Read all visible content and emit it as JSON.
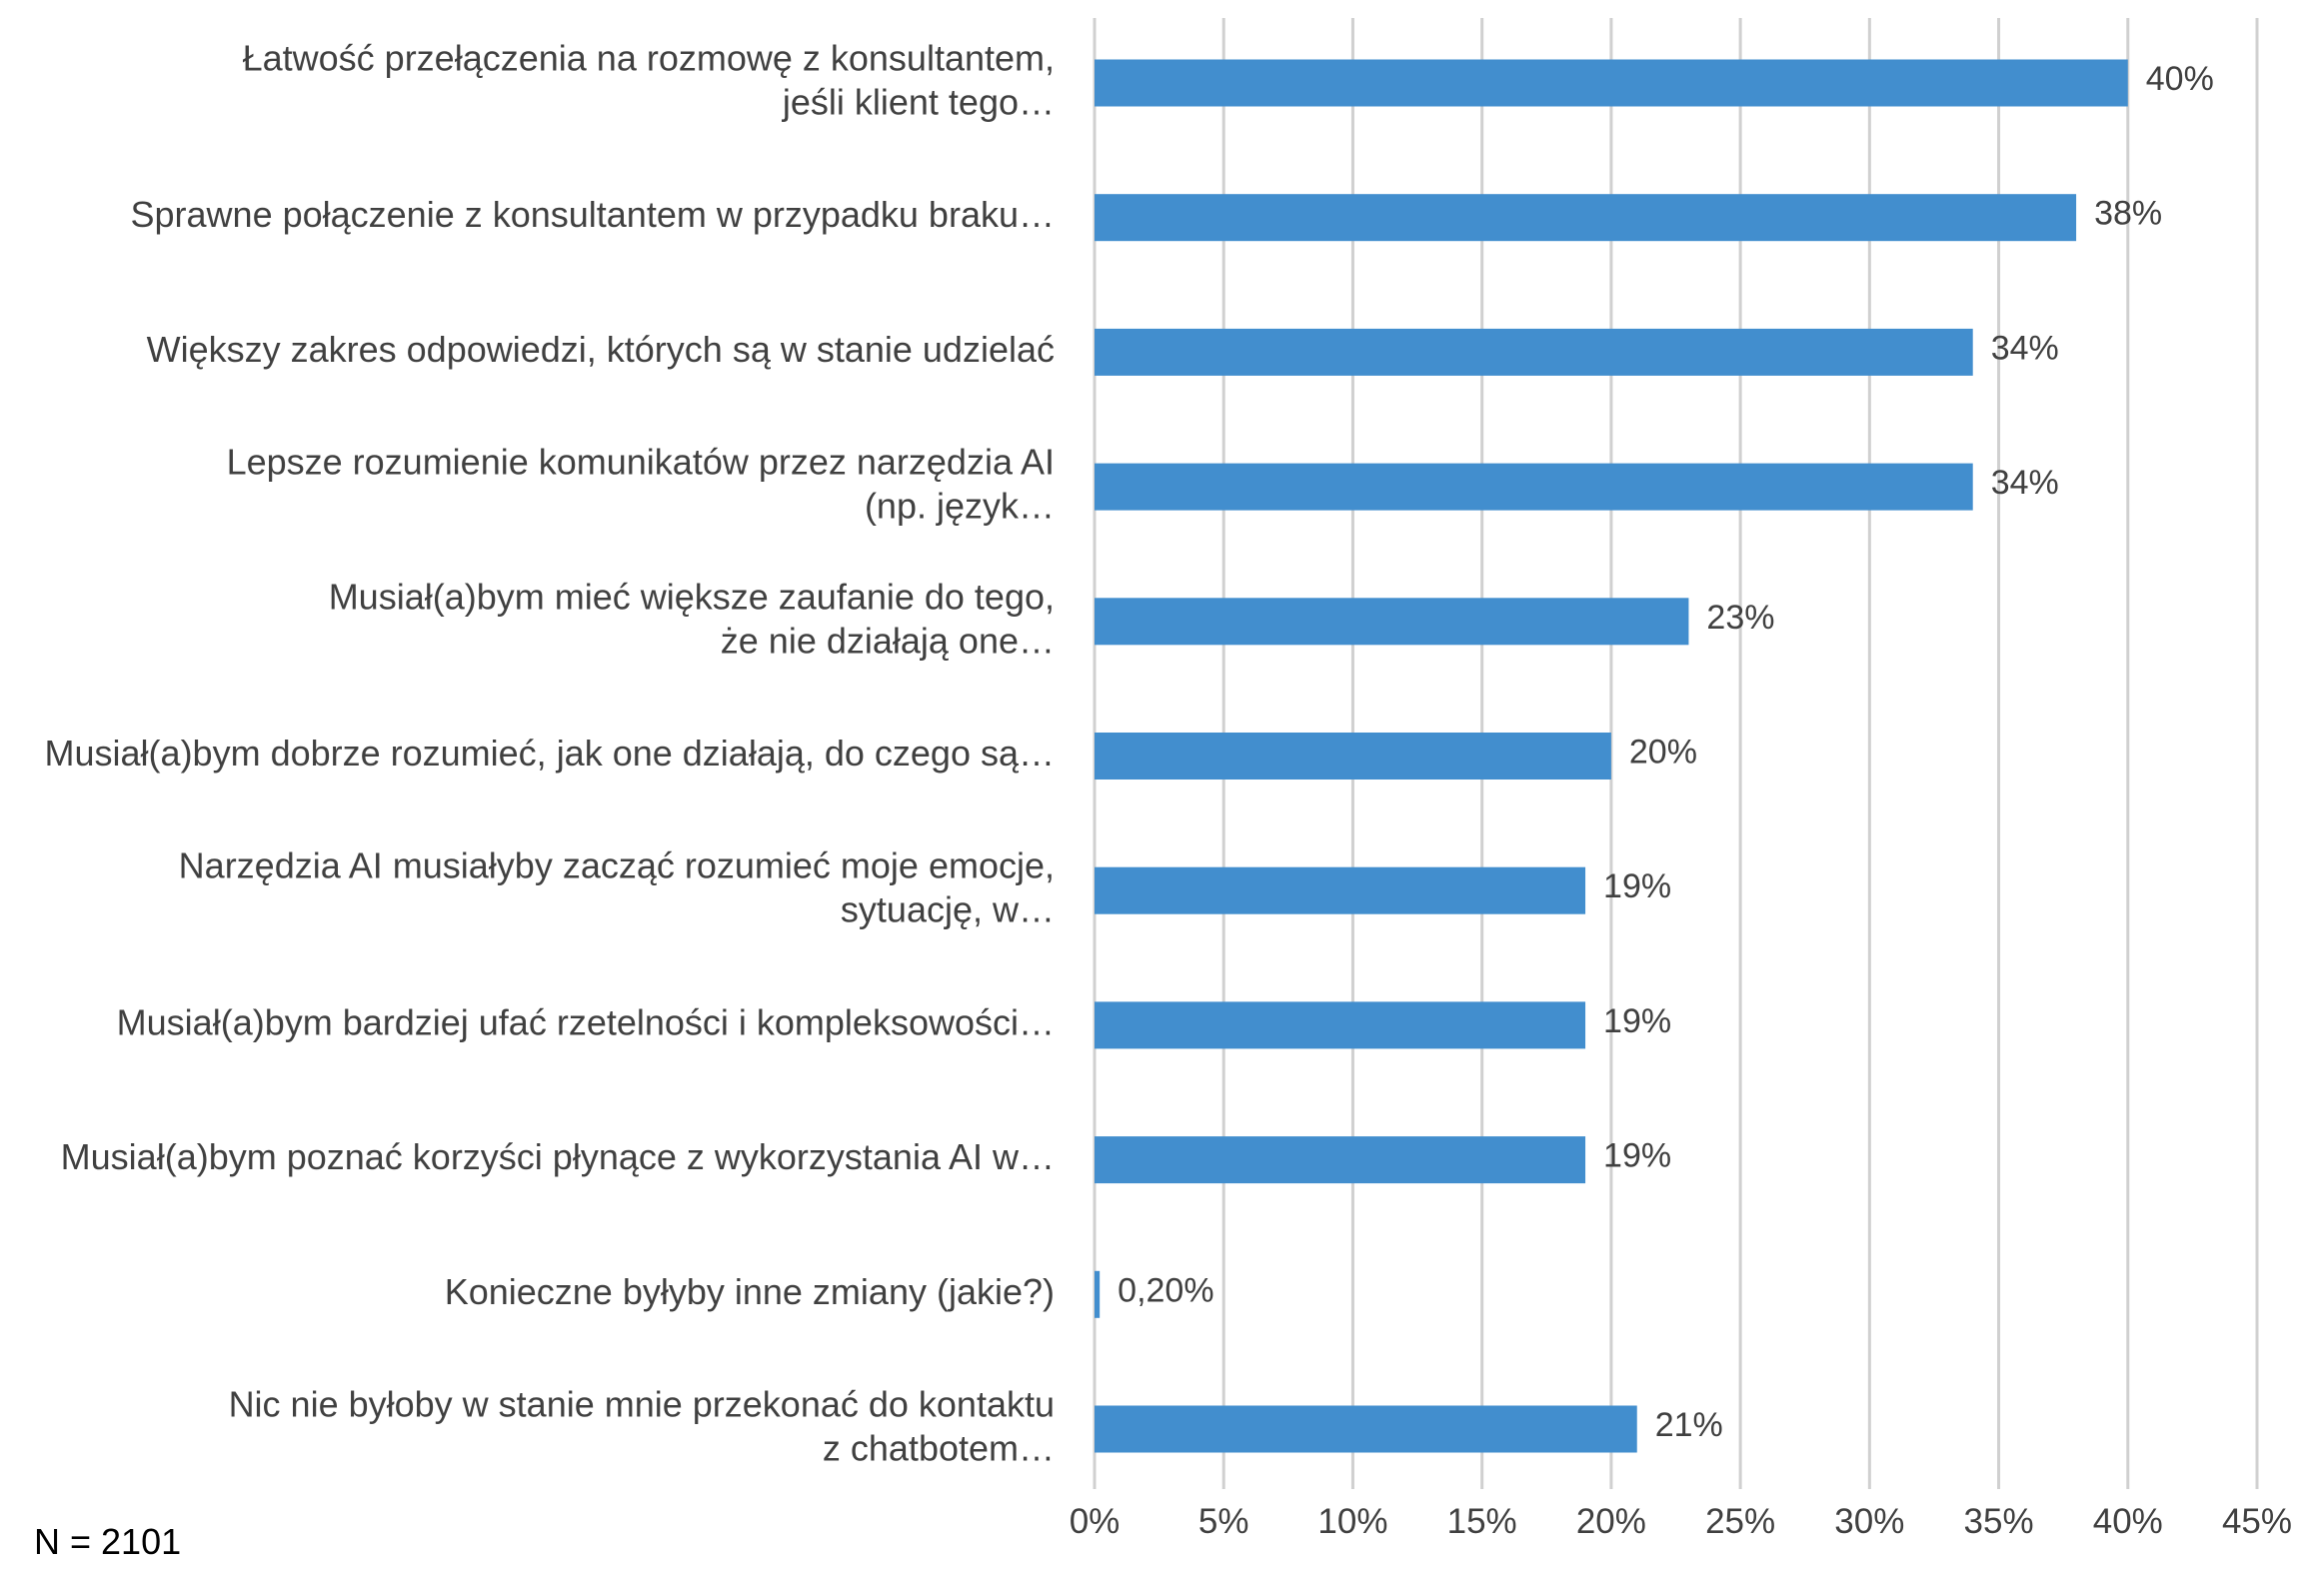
{
  "note": "N = 2101",
  "colors": {
    "bar": "#428ECE",
    "grid": "#D0D0D0",
    "text": "#404040"
  },
  "chart_data": {
    "type": "bar",
    "orientation": "horizontal",
    "categories": [
      [
        "Łatwość przełączenia na rozmowę z konsultantem,",
        "jeśli klient tego…"
      ],
      [
        "Sprawne połączenie z konsultantem w przypadku braku…"
      ],
      [
        "Większy zakres odpowiedzi, których są w stanie udzielać"
      ],
      [
        "Lepsze rozumienie komunikatów przez narzędzia AI",
        "(np. język…"
      ],
      [
        "Musiał(a)bym mieć większe zaufanie do tego,",
        "że nie działają one…"
      ],
      [
        "Musiał(a)bym dobrze rozumieć, jak one działają, do czego są…"
      ],
      [
        "Narzędzia AI musiałyby zacząć rozumieć moje emocje,",
        "sytuację, w…"
      ],
      [
        "Musiał(a)bym bardziej ufać rzetelności i kompleksowości…"
      ],
      [
        "Musiał(a)bym poznać korzyści płynące z wykorzystania AI w…"
      ],
      [
        "Konieczne byłyby inne zmiany (jakie?)"
      ],
      [
        "Nic nie byłoby w stanie mnie przekonać do kontaktu",
        "z chatbotem…"
      ]
    ],
    "values": [
      40,
      38,
      34,
      34,
      23,
      20,
      19,
      19,
      19,
      0.2,
      21
    ],
    "value_labels": [
      "40%",
      "38%",
      "34%",
      "34%",
      "23%",
      "20%",
      "19%",
      "19%",
      "19%",
      "0,20%",
      "21%"
    ],
    "xlim": [
      0,
      45
    ],
    "xticks": [
      0,
      5,
      10,
      15,
      20,
      25,
      30,
      35,
      40,
      45
    ],
    "xtick_labels": [
      "0%",
      "5%",
      "10%",
      "15%",
      "20%",
      "25%",
      "30%",
      "35%",
      "40%",
      "45%"
    ],
    "grid": "vertical",
    "legend": "none"
  }
}
